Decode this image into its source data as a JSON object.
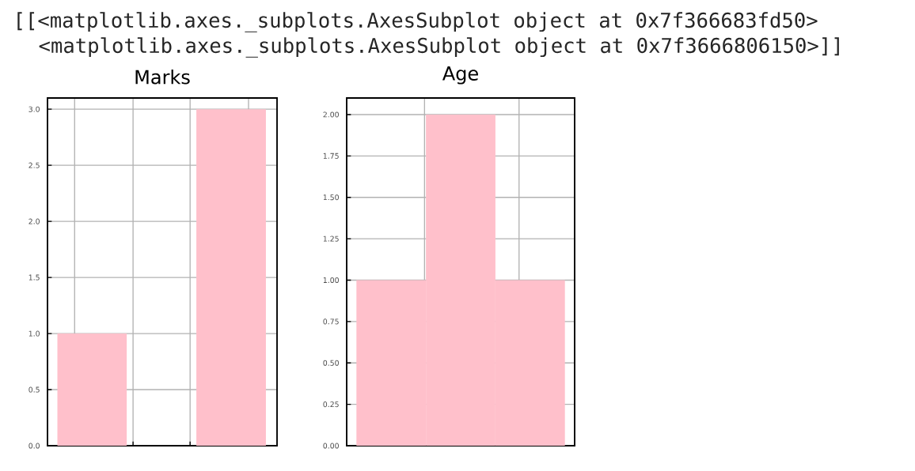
{
  "chart_data": [
    {
      "type": "bar",
      "title": "Marks",
      "categories": [
        null,
        null,
        null
      ],
      "values": [
        1,
        0,
        3
      ],
      "color": "#ffc0cb",
      "ylim": [
        0,
        3.1
      ],
      "yticks": [
        {
          "value": 0,
          "label": "0.0"
        },
        {
          "value": 0.5,
          "label": "0.5"
        },
        {
          "value": 1,
          "label": "1.0"
        },
        {
          "value": 1.5,
          "label": "1.5"
        },
        {
          "value": 2,
          "label": "2.0"
        },
        {
          "value": 2.5,
          "label": "2.5"
        },
        {
          "value": 3,
          "label": "3.0"
        }
      ],
      "grid": true,
      "annotations": [
        "[[<matplotlib.axes._subplots.AxesSubplot object at 0x7f366683fd50>",
        "<matplotlib.axes._subplots.AxesSubplot object at 0x7f3666806150>]]"
      ]
    },
    {
      "type": "bar",
      "title": "Age",
      "categories": [
        null,
        null,
        null
      ],
      "values": [
        1,
        2,
        1
      ],
      "color": "#ffc0cb",
      "ylim": [
        0,
        2.1
      ],
      "yticks": [
        {
          "value": 0,
          "label": "0.00"
        },
        {
          "value": 0.25,
          "label": "0.25"
        },
        {
          "value": 0.5,
          "label": "0.50"
        },
        {
          "value": 0.75,
          "label": "0.75"
        },
        {
          "value": 1,
          "label": "1.00"
        },
        {
          "value": 1.25,
          "label": "1.25"
        },
        {
          "value": 1.5,
          "label": "1.50"
        },
        {
          "value": 1.75,
          "label": "1.75"
        },
        {
          "value": 2,
          "label": "2.00"
        }
      ],
      "grid": true
    }
  ]
}
